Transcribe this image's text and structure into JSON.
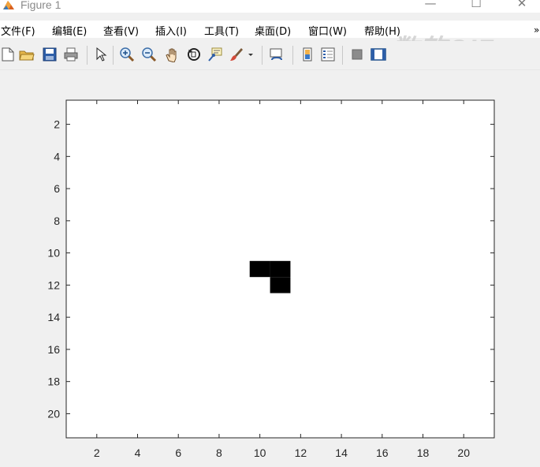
{
  "window": {
    "title": "Figure 1",
    "minimize_glyph": "—",
    "maximize_glyph": "☐",
    "close_glyph": "✕"
  },
  "menubar": {
    "items": [
      {
        "label": "文件(F)"
      },
      {
        "label": "编辑(E)"
      },
      {
        "label": "查看(V)"
      },
      {
        "label": "插入(I)"
      },
      {
        "label": "工具(T)"
      },
      {
        "label": "桌面(D)"
      },
      {
        "label": "窗口(W)"
      },
      {
        "label": "帮助(H)"
      }
    ],
    "overflow_glyph": "»",
    "watermark": "数软GIF"
  },
  "toolbar": {
    "icons": [
      "new-figure-icon",
      "open-file-icon",
      "save-icon",
      "print-icon",
      "pointer-icon",
      "zoom-in-icon",
      "zoom-out-icon",
      "pan-icon",
      "rotate-3d-icon",
      "data-cursor-icon",
      "brush-icon",
      "link-plot-icon",
      "colorbar-icon",
      "legend-icon",
      "hide-plot-tools-icon",
      "show-plot-tools-icon"
    ]
  },
  "chart_data": {
    "type": "heatmap",
    "xlim": [
      0.5,
      21.5
    ],
    "ylim": [
      0.5,
      21.5
    ],
    "y_direction": "reverse",
    "x_ticks": [
      2,
      4,
      6,
      8,
      10,
      12,
      14,
      16,
      18,
      20
    ],
    "y_ticks": [
      2,
      4,
      6,
      8,
      10,
      12,
      14,
      16,
      18,
      20
    ],
    "colormap": {
      "0": "#ffffff",
      "1": "#000000"
    },
    "filled_cells": [
      {
        "row": 11,
        "col": 10
      },
      {
        "row": 11,
        "col": 11
      },
      {
        "row": 12,
        "col": 11
      }
    ],
    "grid": false
  }
}
